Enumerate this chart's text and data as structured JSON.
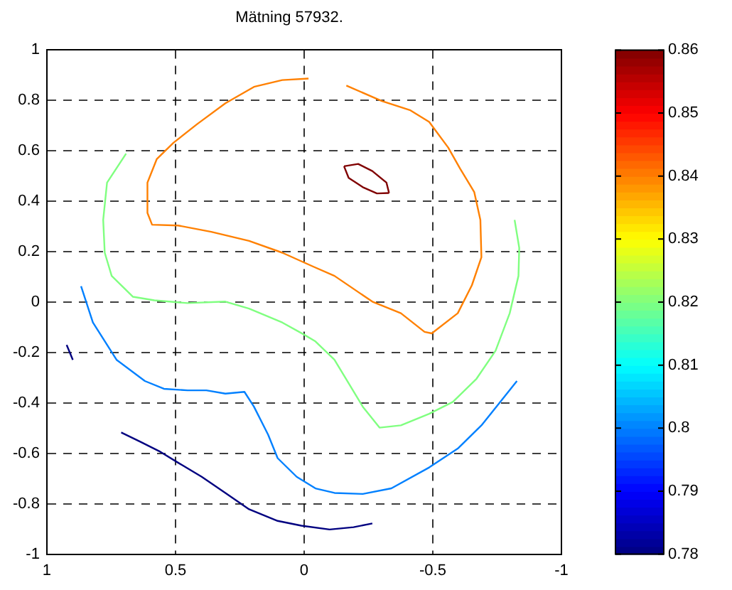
{
  "chart_data": {
    "type": "line",
    "title": "Mätning 57932.",
    "xlim": [
      1,
      -1
    ],
    "ylim": [
      -1,
      1
    ],
    "xticks": [
      1,
      0.5,
      0,
      -0.5,
      -1
    ],
    "yticks": [
      -1,
      -0.8,
      -0.6,
      -0.4,
      -0.2,
      0,
      0.2,
      0.4,
      0.6,
      0.8,
      1
    ],
    "grid": true,
    "legend": false,
    "marker": "none",
    "line_style": "solid",
    "clim": [
      0.78,
      0.86
    ],
    "cticks": [
      0.78,
      0.79,
      0.8,
      0.81,
      0.82,
      0.83,
      0.84,
      0.85,
      0.86
    ],
    "series": [
      {
        "color": "#ff8000",
        "x": [
          -0.017,
          0.085,
          0.195,
          0.306,
          0.416,
          0.508,
          0.573,
          0.609,
          0.609,
          0.591,
          0.49,
          0.361,
          0.214,
          0.085,
          -0.035,
          -0.118,
          -0.265,
          -0.376,
          -0.468,
          -0.496,
          -0.597,
          -0.652,
          -0.689,
          -0.685,
          -0.661,
          -0.606,
          -0.56,
          -0.486,
          -0.413,
          -0.302,
          -0.164
        ],
        "values": [
          0.887,
          0.881,
          0.854,
          0.789,
          0.706,
          0.632,
          0.567,
          0.474,
          0.354,
          0.307,
          0.304,
          0.279,
          0.243,
          0.196,
          0.141,
          0.104,
          0.002,
          -0.044,
          -0.118,
          -0.124,
          -0.044,
          0.067,
          0.178,
          0.326,
          0.437,
          0.53,
          0.613,
          0.715,
          0.761,
          0.798,
          0.859
        ]
      },
      {
        "color": "#80ff80",
        "x": [
          0.692,
          0.766,
          0.781,
          0.775,
          0.748,
          0.665,
          0.582,
          0.453,
          0.306,
          0.214,
          0.085,
          0.002,
          -0.044,
          -0.118,
          -0.173,
          -0.228,
          -0.293,
          -0.376,
          -0.486,
          -0.578,
          -0.67,
          -0.744,
          -0.799,
          -0.833,
          -0.836,
          -0.818
        ],
        "values": [
          0.589,
          0.474,
          0.326,
          0.196,
          0.104,
          0.021,
          0.007,
          -0.004,
          0.002,
          -0.026,
          -0.081,
          -0.128,
          -0.156,
          -0.229,
          -0.322,
          -0.415,
          -0.498,
          -0.489,
          -0.443,
          -0.396,
          -0.304,
          -0.193,
          -0.044,
          0.104,
          0.215,
          0.326
        ]
      },
      {
        "color": "#0080ff",
        "x": [
          0.867,
          0.821,
          0.729,
          0.619,
          0.545,
          0.453,
          0.38,
          0.306,
          0.232,
          0.195,
          0.14,
          0.103,
          0.029,
          -0.044,
          -0.118,
          -0.228,
          -0.339,
          -0.486,
          -0.597,
          -0.689,
          -0.762,
          -0.827
        ],
        "values": [
          0.063,
          -0.081,
          -0.229,
          -0.313,
          -0.344,
          -0.35,
          -0.35,
          -0.363,
          -0.356,
          -0.415,
          -0.526,
          -0.619,
          -0.693,
          -0.739,
          -0.757,
          -0.761,
          -0.739,
          -0.656,
          -0.581,
          -0.489,
          -0.396,
          -0.313
        ]
      },
      {
        "color": "#000080",
        "x": [
          0.711,
          0.637,
          0.564,
          0.49,
          0.398,
          0.306,
          0.214,
          0.103,
          0.011,
          -0.099,
          -0.192,
          -0.265
        ],
        "values": [
          -0.517,
          -0.554,
          -0.591,
          -0.637,
          -0.693,
          -0.757,
          -0.822,
          -0.868,
          -0.887,
          -0.902,
          -0.893,
          -0.878
        ]
      },
      {
        "color": "#000080",
        "x": [
          0.923,
          0.899
        ],
        "values": [
          -0.17,
          -0.229
        ]
      },
      {
        "color": "#800000",
        "x": [
          -0.155,
          -0.21,
          -0.265,
          -0.32,
          -0.33
        ],
        "values": [
          0.539,
          0.548,
          0.52,
          0.474,
          0.433
        ]
      },
      {
        "color": "#800000",
        "x": [
          -0.33,
          -0.283,
          -0.228,
          -0.173,
          -0.155
        ],
        "values": [
          0.433,
          0.431,
          0.456,
          0.493,
          0.539
        ]
      }
    ]
  }
}
